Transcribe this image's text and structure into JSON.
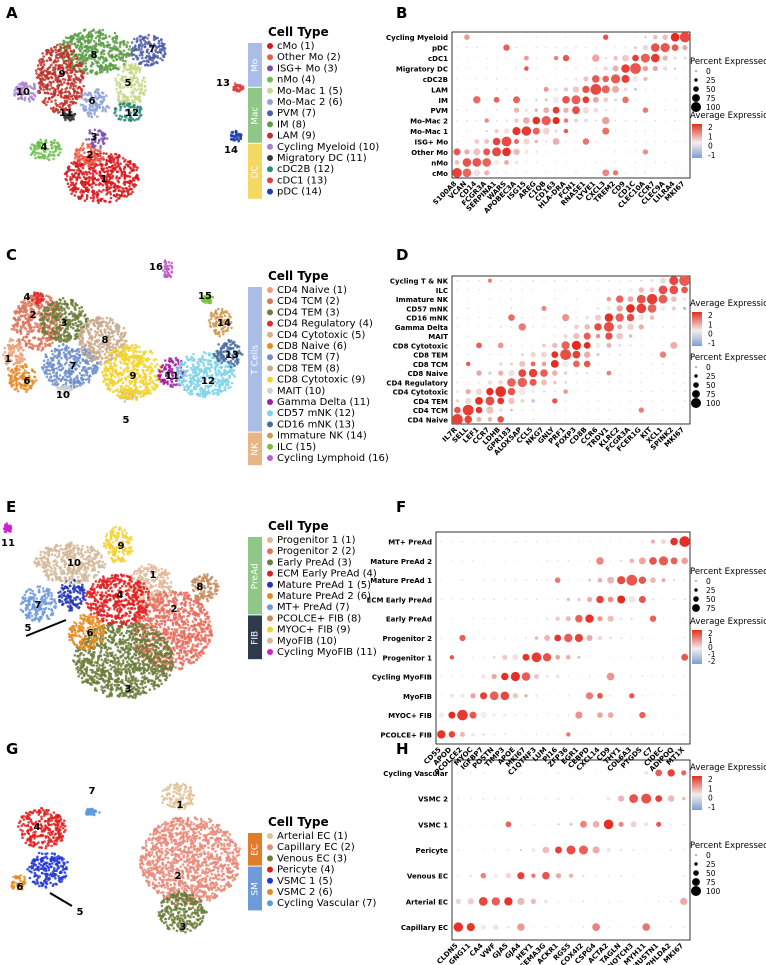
{
  "panels": {
    "A": {
      "label": "A",
      "title": "Cell Type",
      "clusters": [
        {
          "label": "cMo (1)",
          "color": "#d7191c"
        },
        {
          "label": "Other Mo (2)",
          "color": "#e9604a"
        },
        {
          "label": "ISG+ Mo (3)",
          "color": "#7b4db0"
        },
        {
          "label": "nMo (4)",
          "color": "#6bbf4e"
        },
        {
          "label": "Mo-Mac 1 (5)",
          "color": "#c8d88a"
        },
        {
          "label": "Mo-Mac 2 (6)",
          "color": "#8fa2d6"
        },
        {
          "label": "PVM (7)",
          "color": "#4f5ea6"
        },
        {
          "label": "IM (8)",
          "color": "#5b9e45"
        },
        {
          "label": "LAM (9)",
          "color": "#c0312b"
        },
        {
          "label": "Cycling Myeloid (10)",
          "color": "#a87fd1"
        },
        {
          "label": "Migratory DC (11)",
          "color": "#3a3a3a"
        },
        {
          "label": "cDC2B (12)",
          "color": "#2d8a7a"
        },
        {
          "label": "cDC1 (13)",
          "color": "#e23f3f"
        },
        {
          "label": "pDC (14)",
          "color": "#1e3fae"
        }
      ],
      "groups": [
        {
          "label": "Mo",
          "color": "#a9bde6"
        },
        {
          "label": "Mac",
          "color": "#8fc786"
        },
        {
          "label": "DC",
          "color": "#f5d862"
        }
      ],
      "umap_labels": [
        "1",
        "2",
        "3",
        "4",
        "5",
        "6",
        "7",
        "8",
        "9",
        "10",
        "11",
        "12",
        "13",
        "14"
      ]
    },
    "B": {
      "label": "B",
      "rows": [
        "Cycling Myeloid",
        "pDC",
        "cDC1",
        "Migratory DC",
        "cDC2B",
        "LAM",
        "IM",
        "PVM",
        "Mo-Mac 2",
        "Mo-Mac 1",
        "ISG+ Mo",
        "Other Mo",
        "nMo",
        "cMo"
      ],
      "genes": [
        "S100A8",
        "VCAN",
        "CD14",
        "FCGR3A",
        "SERPINA1",
        "WARS",
        "APOBEC3A",
        "ISG15",
        "AREG",
        "C1QB",
        "CD163",
        "HLA-DRA",
        "FCN1",
        "RNASE1",
        "LYVE1",
        "CXCL3",
        "TREM2",
        "CD9",
        "CD1C",
        "CLEC10A",
        "CCR7",
        "CLEC9A",
        "LILRA4",
        "MKI67"
      ],
      "legend_pct_title": "Percent Expressed",
      "legend_pct_values": [
        "0",
        "25",
        "50",
        "75",
        "100"
      ],
      "legend_avg_title": "Average Expression",
      "legend_avg_ticks": [
        "2",
        "1",
        "0",
        "-1"
      ]
    },
    "C": {
      "label": "C",
      "title": "Cell Type",
      "clusters": [
        {
          "label": "CD4 Naive (1)",
          "color": "#e8a17a"
        },
        {
          "label": "CD4 TCM (2)",
          "color": "#d9775b"
        },
        {
          "label": "CD4 TEM (3)",
          "color": "#6b7d3a"
        },
        {
          "label": "CD4 Regulatory (4)",
          "color": "#e32b2b"
        },
        {
          "label": "CD4 Cytotoxic (5)",
          "color": "#d6b48a"
        },
        {
          "label": "CD8 Naive (6)",
          "color": "#e58a1f"
        },
        {
          "label": "CD8 TCM (7)",
          "color": "#6f8fc9"
        },
        {
          "label": "CD8 TEM (8)",
          "color": "#c9a98c"
        },
        {
          "label": "CD8 Cytotoxic (9)",
          "color": "#f2d22e"
        },
        {
          "label": "MAIT (10)",
          "color": "#d0d0d0"
        },
        {
          "label": "Gamma Delta (11)",
          "color": "#a020a0"
        },
        {
          "label": "CD57 mNK (12)",
          "color": "#7fd3e8"
        },
        {
          "label": "CD16 mNK (13)",
          "color": "#4a6f9e"
        },
        {
          "label": "Immature NK (14)",
          "color": "#cf9a50"
        },
        {
          "label": "ILC (15)",
          "color": "#7cc03a"
        },
        {
          "label": "Cycling Lymphoid (16)",
          "color": "#c05cc9"
        }
      ],
      "groups": [
        {
          "label": "T Cells",
          "color": "#a9bde6"
        },
        {
          "label": "NK",
          "color": "#e8b584"
        }
      ],
      "umap_labels": [
        "1",
        "2",
        "3",
        "4",
        "5",
        "6",
        "7",
        "8",
        "9",
        "10",
        "11",
        "12",
        "13",
        "14",
        "15",
        "16"
      ]
    },
    "D": {
      "label": "D",
      "rows": [
        "Cycling T & NK",
        "ILC",
        "Immature NK",
        "CD57 mNK",
        "CD16 mNK",
        "Gamma Delta",
        "MAIT",
        "CD8 Cytotoxic",
        "CD8 TEM",
        "CD8 TCM",
        "CD8 Naive",
        "CD4 Regulatory",
        "CD4 Cytotoxic",
        "CD4 TEM",
        "CD4 TCM",
        "CD4 Naive"
      ],
      "genes": [
        "IL7R",
        "SELL",
        "LEF1",
        "CCR7",
        "LDHB",
        "GPR183",
        "ALOX5AP",
        "CCL5",
        "NKG7",
        "GNLY",
        "PRF1",
        "FOXP3",
        "CD8B",
        "CCR6",
        "TRDV1",
        "KLRC2",
        "FCGR3A",
        "FCER1G",
        "KIT",
        "XCL1",
        "SPINK2",
        "MKI67"
      ],
      "legend_avg_title": "Average Expression",
      "legend_avg_ticks": [
        "2",
        "1",
        "0",
        "-1"
      ],
      "legend_pct_title": "Percent Expressed",
      "legend_pct_values": [
        "0",
        "25",
        "50",
        "75",
        "100"
      ]
    },
    "E": {
      "label": "E",
      "title": "Cell Type",
      "clusters": [
        {
          "label": "Progenitor 1 (1)",
          "color": "#e0b79a"
        },
        {
          "label": "Progenitor 2 (2)",
          "color": "#e86f5e"
        },
        {
          "label": "Early PreAd (3)",
          "color": "#6b7d3a"
        },
        {
          "label": "ECM Early PreAd (4)",
          "color": "#e02020"
        },
        {
          "label": "Mature PreAd 1 (5)",
          "color": "#2236b5"
        },
        {
          "label": "Mature PreAd 2 (6)",
          "color": "#e58a1f"
        },
        {
          "label": "MT+ PreAd (7)",
          "color": "#6f9ad9"
        },
        {
          "label": "PCOLCE+ FIB (8)",
          "color": "#c58a5c"
        },
        {
          "label": "MYOC+ FIB (9)",
          "color": "#f2d22e"
        },
        {
          "label": "MyoFIB (10)",
          "color": "#d3b89a"
        },
        {
          "label": "Cycling MyoFIB (11)",
          "color": "#d01fd0"
        }
      ],
      "groups": [
        {
          "label": "PreAd",
          "color": "#8fc786"
        },
        {
          "label": "FIB",
          "color": "#2f3b4d"
        }
      ],
      "umap_labels": [
        "1",
        "2",
        "3",
        "4",
        "5",
        "6",
        "7",
        "8",
        "9",
        "10",
        "11"
      ]
    },
    "F": {
      "label": "F",
      "rows": [
        "MT+ PreAd",
        "Mature PreAd 2",
        "Mature PreAd 1",
        "ECM Early PreAd",
        "Early PreAd",
        "Progenitor 2",
        "Progenitor 1",
        "Cycling MyoFIB",
        "MyoFIB",
        "MYOC+ FIB",
        "PCOLCE+ FIB"
      ],
      "genes": [
        "CD55",
        "APOD",
        "PCOLCE2",
        "MYOC",
        "IGFBP7",
        "POSTN",
        "TIMP3",
        "APOE",
        "MKI67",
        "C1QTNF3",
        "LUM",
        "PI16",
        "ZFP36",
        "EGR1",
        "CEBPD",
        "CXCL14",
        "CD9",
        "THY1",
        "COL6A3",
        "PTGDS",
        "C7",
        "CIDEC",
        "ADIPOQ",
        "MT1X"
      ],
      "legend_pct_title": "Percent Expressed",
      "legend_pct_values": [
        "0",
        "25",
        "50",
        "75"
      ],
      "legend_avg_title": "Average Expression",
      "legend_avg_ticks": [
        "2",
        "1",
        "0",
        "-1",
        "-2"
      ]
    },
    "G": {
      "label": "G",
      "title": "Cell Type",
      "clusters": [
        {
          "label": "Arterial EC (1)",
          "color": "#e2c196"
        },
        {
          "label": "Capillary EC (2)",
          "color": "#e88b7a"
        },
        {
          "label": "Venous EC (3)",
          "color": "#6b7d3a"
        },
        {
          "label": "Pericyte (4)",
          "color": "#e02020"
        },
        {
          "label": "VSMC 1 (5)",
          "color": "#2236d5"
        },
        {
          "label": "VSMC 2 (6)",
          "color": "#e58a1f"
        },
        {
          "label": "Cycling Vascular (7)",
          "color": "#5a9ad9"
        }
      ],
      "groups": [
        {
          "label": "EC",
          "color": "#e07c2c"
        },
        {
          "label": "SM",
          "color": "#6f9ad9"
        }
      ],
      "umap_labels": [
        "1",
        "2",
        "3",
        "4",
        "5",
        "6",
        "7"
      ]
    },
    "H": {
      "label": "H",
      "rows": [
        "Cycling Vascular",
        "VSMC 2",
        "VSMC 1",
        "Pericyte",
        "Venous EC",
        "Arterial EC",
        "Capillary EC"
      ],
      "genes": [
        "CLDN5",
        "GNG11",
        "CA4",
        "VWF",
        "GJA5",
        "GJA4",
        "HEY1",
        "SEMA3G",
        "ACKR1",
        "RGS5",
        "COX4I2",
        "CSPG4",
        "ACTA2",
        "TAGLN",
        "NOTCH3",
        "MYH11",
        "MUSTN1",
        "PHLDA2",
        "MKI67"
      ],
      "legend_avg_title": "Average Expression",
      "legend_avg_ticks": [
        "2",
        "1",
        "0",
        "-1"
      ],
      "legend_pct_title": "Percent Expressed",
      "legend_pct_values": [
        "0",
        "25",
        "50",
        "75",
        "100"
      ]
    }
  }
}
